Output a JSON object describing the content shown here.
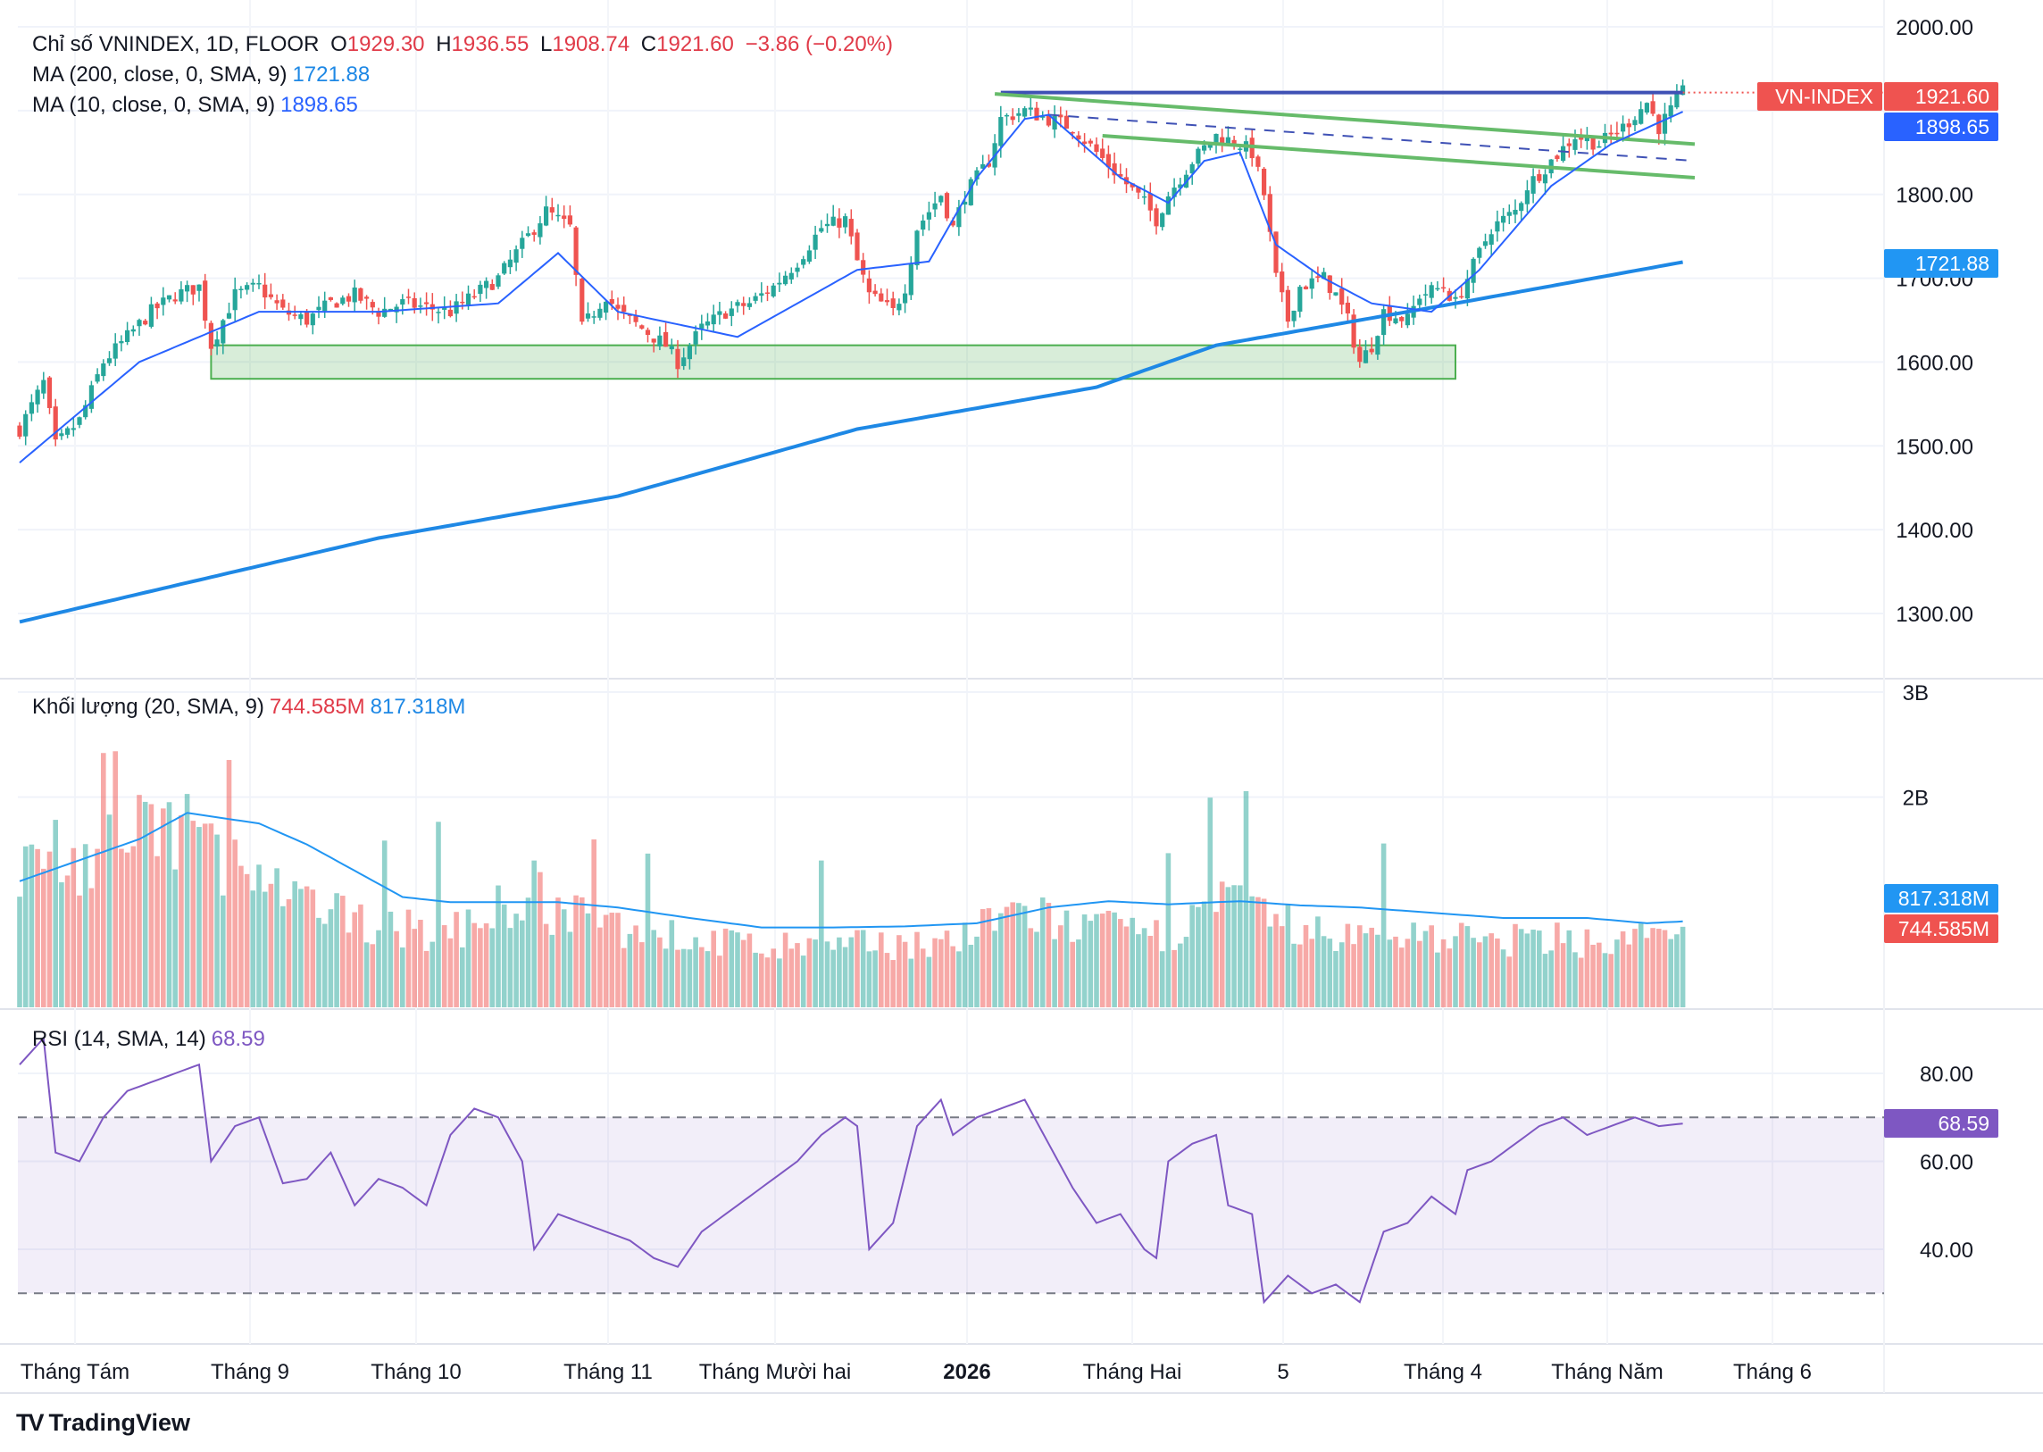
{
  "header": {
    "symbol_title": "Chỉ số VNINDEX, 1D, FLOOR",
    "ohlc": {
      "o_label": "O",
      "o": "1929.30",
      "h_label": "H",
      "h": "1936.55",
      "l_label": "L",
      "l": "1908.74",
      "c_label": "C",
      "c": "1921.60",
      "change": "−3.86 (−0.20%)"
    },
    "ma200_label": "MA (200, close, 0, SMA, 9)",
    "ma200_value": "1721.88",
    "ma10_label": "MA (10, close, 0, SMA, 9)",
    "ma10_value": "1898.65"
  },
  "volume_legend": {
    "label": "Khối lượng (20, SMA, 9)",
    "value": "744.585M",
    "ma_value": "817.318M"
  },
  "rsi_legend": {
    "label": "RSI (14, SMA, 14)",
    "value": "68.59"
  },
  "price_tags": {
    "symbol": "VN-INDEX",
    "last": "1921.60",
    "ma10": "1898.65",
    "ma200": "1721.88",
    "vol_ma": "817.318M",
    "vol": "744.585M",
    "rsi": "68.59"
  },
  "brand": "TradingView",
  "colors": {
    "up": "#26a69a",
    "down": "#ef5350",
    "ma10": "#2962ff",
    "ma200": "#1e88e5",
    "rsi": "#7e57c2",
    "zone": "#4caf50",
    "trend": "#66bb6a"
  },
  "chart_data": [
    {
      "type": "candlestick",
      "title": "Chỉ số VNINDEX, 1D, FLOOR",
      "y_ticks": [
        "2000.00",
        "1800.00",
        "1700.00",
        "1600.00",
        "1500.00",
        "1400.00",
        "1300.00"
      ],
      "ylim": [
        1240,
        2035
      ],
      "x_ticks": [
        "Tháng Tám",
        "Tháng 9",
        "Tháng 10",
        "Tháng 11",
        "Tháng Mười hai",
        "2026",
        "Tháng Hai",
        "5",
        "Tháng 4",
        "Tháng Năm",
        "Tháng 6"
      ],
      "close_path": [
        [
          0,
          1520
        ],
        [
          4,
          1575
        ],
        [
          6,
          1500
        ],
        [
          10,
          1530
        ],
        [
          14,
          1600
        ],
        [
          18,
          1630
        ],
        [
          22,
          1660
        ],
        [
          26,
          1680
        ],
        [
          30,
          1690
        ],
        [
          32,
          1620
        ],
        [
          36,
          1680
        ],
        [
          40,
          1690
        ],
        [
          44,
          1660
        ],
        [
          48,
          1650
        ],
        [
          52,
          1670
        ],
        [
          56,
          1680
        ],
        [
          60,
          1660
        ],
        [
          64,
          1670
        ],
        [
          68,
          1665
        ],
        [
          72,
          1660
        ],
        [
          76,
          1680
        ],
        [
          80,
          1700
        ],
        [
          84,
          1740
        ],
        [
          88,
          1780
        ],
        [
          92,
          1760
        ],
        [
          94,
          1640
        ],
        [
          98,
          1680
        ],
        [
          100,
          1660
        ],
        [
          104,
          1640
        ],
        [
          108,
          1620
        ],
        [
          110,
          1600
        ],
        [
          114,
          1640
        ],
        [
          118,
          1660
        ],
        [
          122,
          1670
        ],
        [
          126,
          1690
        ],
        [
          130,
          1720
        ],
        [
          134,
          1760
        ],
        [
          138,
          1770
        ],
        [
          140,
          1720
        ],
        [
          142,
          1680
        ],
        [
          146,
          1660
        ],
        [
          148,
          1690
        ],
        [
          150,
          1760
        ],
        [
          154,
          1800
        ],
        [
          156,
          1760
        ],
        [
          158,
          1800
        ],
        [
          162,
          1840
        ],
        [
          164,
          1890
        ],
        [
          168,
          1900
        ],
        [
          172,
          1890
        ],
        [
          176,
          1880
        ],
        [
          180,
          1850
        ],
        [
          184,
          1820
        ],
        [
          188,
          1790
        ],
        [
          190,
          1770
        ],
        [
          192,
          1800
        ],
        [
          196,
          1840
        ],
        [
          200,
          1870
        ],
        [
          204,
          1860
        ],
        [
          206,
          1850
        ],
        [
          208,
          1800
        ],
        [
          210,
          1700
        ],
        [
          212,
          1650
        ],
        [
          214,
          1690
        ],
        [
          218,
          1700
        ],
        [
          220,
          1680
        ],
        [
          222,
          1650
        ],
        [
          224,
          1600
        ],
        [
          226,
          1620
        ],
        [
          228,
          1660
        ],
        [
          232,
          1650
        ],
        [
          234,
          1680
        ],
        [
          238,
          1690
        ],
        [
          240,
          1670
        ],
        [
          242,
          1700
        ],
        [
          246,
          1760
        ],
        [
          250,
          1780
        ],
        [
          252,
          1810
        ],
        [
          256,
          1840
        ],
        [
          260,
          1870
        ],
        [
          264,
          1860
        ],
        [
          268,
          1880
        ],
        [
          272,
          1910
        ],
        [
          274,
          1880
        ],
        [
          276,
          1900
        ],
        [
          278,
          1921.6
        ]
      ],
      "ma200_path": [
        [
          0,
          1290
        ],
        [
          60,
          1390
        ],
        [
          100,
          1440
        ],
        [
          140,
          1520
        ],
        [
          180,
          1570
        ],
        [
          200,
          1620
        ],
        [
          240,
          1670
        ],
        [
          280,
          1721.88
        ]
      ],
      "ma10_path": [
        [
          0,
          1480
        ],
        [
          20,
          1600
        ],
        [
          40,
          1660
        ],
        [
          60,
          1660
        ],
        [
          80,
          1670
        ],
        [
          90,
          1730
        ],
        [
          100,
          1660
        ],
        [
          120,
          1630
        ],
        [
          140,
          1710
        ],
        [
          152,
          1720
        ],
        [
          160,
          1820
        ],
        [
          168,
          1890
        ],
        [
          172,
          1895
        ],
        [
          184,
          1820
        ],
        [
          192,
          1790
        ],
        [
          198,
          1840
        ],
        [
          204,
          1850
        ],
        [
          210,
          1740
        ],
        [
          218,
          1700
        ],
        [
          226,
          1670
        ],
        [
          236,
          1660
        ],
        [
          244,
          1710
        ],
        [
          256,
          1810
        ],
        [
          266,
          1860
        ],
        [
          278,
          1898.65
        ]
      ],
      "annotations": {
        "resistance": 1921.6,
        "support_zone": [
          1580,
          1620
        ],
        "upper_trendline": [
          [
            163,
            1920
          ],
          [
            280,
            1860
          ]
        ],
        "lower_trendline": [
          [
            181,
            1870
          ],
          [
            280,
            1820
          ]
        ],
        "mid_dashed": [
          [
            172,
            1895
          ],
          [
            280,
            1840
          ]
        ]
      }
    },
    {
      "type": "bar",
      "title": "Khối lượng (20, SMA, 9)",
      "y_ticks": [
        "3B",
        "2B"
      ],
      "ylim": [
        0,
        3000000000
      ],
      "volume_path": [
        [
          0,
          1200
        ],
        [
          6,
          1500
        ],
        [
          10,
          1300
        ],
        [
          16,
          1500
        ],
        [
          22,
          1600
        ],
        [
          28,
          1700
        ],
        [
          32,
          1500
        ],
        [
          38,
          1200
        ],
        [
          44,
          1000
        ],
        [
          50,
          900
        ],
        [
          56,
          800
        ],
        [
          60,
          800
        ],
        [
          66,
          700
        ],
        [
          72,
          700
        ],
        [
          78,
          850
        ],
        [
          82,
          950
        ],
        [
          86,
          1100
        ],
        [
          90,
          850
        ],
        [
          96,
          800
        ],
        [
          104,
          700
        ],
        [
          110,
          650
        ],
        [
          118,
          600
        ],
        [
          126,
          550
        ],
        [
          136,
          550
        ],
        [
          146,
          600
        ],
        [
          156,
          600
        ],
        [
          162,
          750
        ],
        [
          166,
          900
        ],
        [
          170,
          850
        ],
        [
          176,
          750
        ],
        [
          184,
          700
        ],
        [
          190,
          650
        ],
        [
          196,
          800
        ],
        [
          202,
          1000
        ],
        [
          206,
          900
        ],
        [
          210,
          800
        ],
        [
          216,
          700
        ],
        [
          222,
          650
        ],
        [
          228,
          650
        ],
        [
          234,
          700
        ],
        [
          240,
          650
        ],
        [
          248,
          600
        ],
        [
          256,
          650
        ],
        [
          264,
          600
        ],
        [
          272,
          650
        ],
        [
          278,
          744.585
        ]
      ],
      "ma_path": [
        [
          0,
          1200
        ],
        [
          10,
          1400
        ],
        [
          20,
          1600
        ],
        [
          28,
          1850
        ],
        [
          34,
          1800
        ],
        [
          40,
          1750
        ],
        [
          48,
          1550
        ],
        [
          56,
          1300
        ],
        [
          64,
          1050
        ],
        [
          72,
          1000
        ],
        [
          80,
          1000
        ],
        [
          90,
          1000
        ],
        [
          100,
          950
        ],
        [
          112,
          850
        ],
        [
          124,
          760
        ],
        [
          136,
          760
        ],
        [
          148,
          770
        ],
        [
          160,
          800
        ],
        [
          172,
          950
        ],
        [
          182,
          1010
        ],
        [
          192,
          980
        ],
        [
          204,
          1010
        ],
        [
          214,
          970
        ],
        [
          224,
          950
        ],
        [
          236,
          900
        ],
        [
          248,
          850
        ],
        [
          262,
          850
        ],
        [
          272,
          800
        ],
        [
          278,
          817.318
        ]
      ],
      "ma_last": "817.318M",
      "last": "744.585M"
    },
    {
      "type": "line",
      "title": "RSI (14, SMA, 14)",
      "y_ticks": [
        "80.00",
        "60.00",
        "40.00"
      ],
      "ylim": [
        20,
        94
      ],
      "bands": [
        30,
        70
      ],
      "rsi_path": [
        [
          0,
          82
        ],
        [
          4,
          88
        ],
        [
          6,
          62
        ],
        [
          10,
          60
        ],
        [
          14,
          70
        ],
        [
          18,
          76
        ],
        [
          22,
          78
        ],
        [
          26,
          80
        ],
        [
          30,
          82
        ],
        [
          32,
          60
        ],
        [
          36,
          68
        ],
        [
          40,
          70
        ],
        [
          44,
          55
        ],
        [
          48,
          56
        ],
        [
          52,
          62
        ],
        [
          56,
          50
        ],
        [
          60,
          56
        ],
        [
          64,
          54
        ],
        [
          68,
          50
        ],
        [
          72,
          66
        ],
        [
          76,
          72
        ],
        [
          80,
          70
        ],
        [
          84,
          60
        ],
        [
          86,
          40
        ],
        [
          90,
          48
        ],
        [
          94,
          46
        ],
        [
          98,
          44
        ],
        [
          102,
          42
        ],
        [
          106,
          38
        ],
        [
          110,
          36
        ],
        [
          114,
          44
        ],
        [
          118,
          48
        ],
        [
          122,
          52
        ],
        [
          126,
          56
        ],
        [
          130,
          60
        ],
        [
          134,
          66
        ],
        [
          138,
          70
        ],
        [
          140,
          68
        ],
        [
          142,
          40
        ],
        [
          146,
          46
        ],
        [
          150,
          68
        ],
        [
          154,
          74
        ],
        [
          156,
          66
        ],
        [
          160,
          70
        ],
        [
          164,
          72
        ],
        [
          168,
          74
        ],
        [
          172,
          64
        ],
        [
          176,
          54
        ],
        [
          180,
          46
        ],
        [
          184,
          48
        ],
        [
          188,
          40
        ],
        [
          190,
          38
        ],
        [
          192,
          60
        ],
        [
          196,
          64
        ],
        [
          200,
          66
        ],
        [
          202,
          50
        ],
        [
          206,
          48
        ],
        [
          208,
          28
        ],
        [
          212,
          34
        ],
        [
          216,
          30
        ],
        [
          220,
          32
        ],
        [
          222,
          30
        ],
        [
          224,
          28
        ],
        [
          226,
          36
        ],
        [
          228,
          44
        ],
        [
          232,
          46
        ],
        [
          236,
          52
        ],
        [
          240,
          48
        ],
        [
          242,
          58
        ],
        [
          246,
          60
        ],
        [
          250,
          64
        ],
        [
          254,
          68
        ],
        [
          258,
          70
        ],
        [
          262,
          66
        ],
        [
          266,
          68
        ],
        [
          270,
          70
        ],
        [
          274,
          68
        ],
        [
          278,
          68.59
        ]
      ],
      "last": "68.59"
    }
  ]
}
